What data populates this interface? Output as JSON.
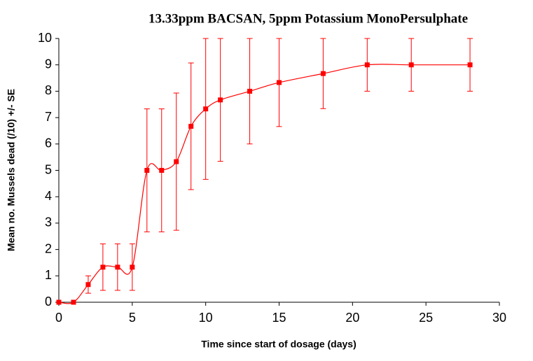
{
  "chart_data": {
    "type": "line",
    "title": "13.33ppm BACSAN, 5ppm Potassium MonoPersulphate",
    "x_label": "Time since start of dosage (days)",
    "y_label": "Mean no. Mussels dead (/10) +/- SE",
    "x": [
      0,
      1,
      2,
      3,
      4,
      5,
      6,
      7,
      8,
      9,
      10,
      11,
      13,
      15,
      18,
      21,
      24,
      28
    ],
    "series": [
      {
        "name": "Mean",
        "color": "#ff0000",
        "values": [
          0,
          0,
          0.67,
          1.33,
          1.33,
          1.33,
          5,
          5,
          5.33,
          6.67,
          7.33,
          7.67,
          8,
          8.33,
          8.67,
          9,
          9,
          9
        ],
        "errors": [
          null,
          null,
          0.33,
          0.88,
          0.88,
          0.88,
          2.33,
          2.33,
          2.6,
          2.4,
          2.67,
          2.33,
          2,
          1.67,
          1.33,
          1,
          1,
          1
        ]
      }
    ],
    "xlim": [
      0,
      30
    ],
    "xticks": [
      0,
      5,
      10,
      15,
      20,
      25,
      30
    ],
    "ylim": [
      0,
      10
    ],
    "yticks": [
      0,
      1,
      2,
      3,
      4,
      5,
      6,
      7,
      8,
      9,
      10
    ],
    "smooth": true
  }
}
